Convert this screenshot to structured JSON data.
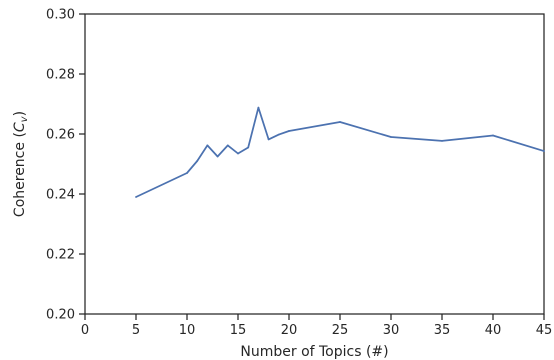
{
  "chart_data": {
    "type": "line",
    "title": "",
    "xlabel": "Number of Topics (#)",
    "ylabel_main": "Coherence (",
    "ylabel_sym": "C",
    "ylabel_sub": "v",
    "ylabel_close": ")",
    "xlim": [
      0,
      45
    ],
    "ylim": [
      0.2,
      0.3
    ],
    "xticks": [
      0,
      5,
      10,
      15,
      20,
      25,
      30,
      35,
      40,
      45
    ],
    "yticks": [
      0.2,
      0.22,
      0.24,
      0.26,
      0.28,
      0.3
    ],
    "ytick_labels": [
      "0.20",
      "0.22",
      "0.24",
      "0.26",
      "0.28",
      "0.30"
    ],
    "grid": false,
    "series": [
      {
        "color": "#4c72b0",
        "x": [
          5,
          10,
          11,
          12,
          13,
          14,
          15,
          16,
          17,
          18,
          19,
          20,
          25,
          30,
          35,
          40,
          45
        ],
        "y": [
          0.239,
          0.247,
          0.251,
          0.2562,
          0.2525,
          0.2562,
          0.2535,
          0.2555,
          0.2688,
          0.2582,
          0.2598,
          0.261,
          0.264,
          0.259,
          0.2577,
          0.2595,
          0.2543
        ]
      }
    ]
  }
}
